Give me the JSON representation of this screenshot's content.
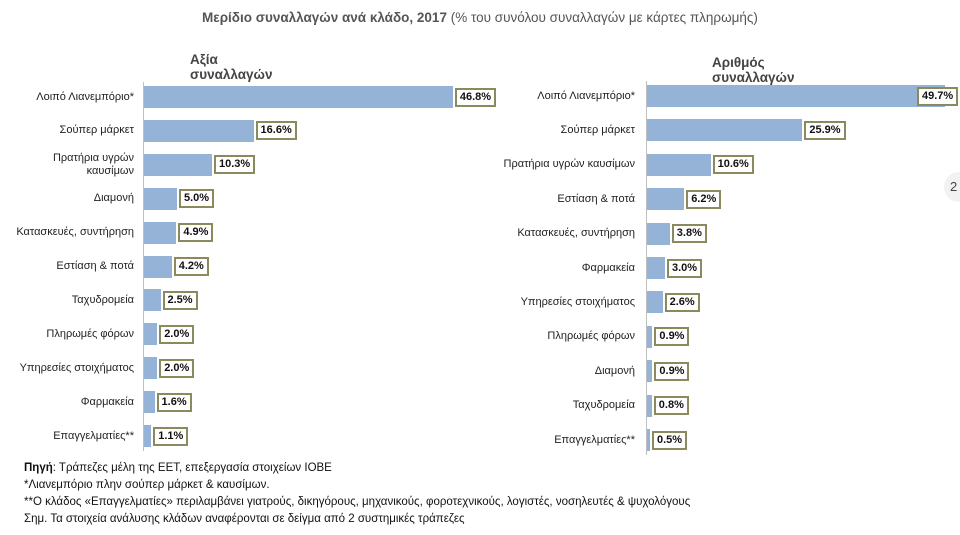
{
  "title": {
    "main": "Μερίδιο συναλλαγών ανά κλάδο, 2017",
    "sub": "(% του συνόλου συναλλαγών με κάρτες πληρωμής)"
  },
  "chart_data": [
    {
      "type": "bar",
      "orientation": "horizontal",
      "title": "Αξία συναλλαγών",
      "categories": [
        "Λοιπό Λιανεμπόριο*",
        "Σούπερ μάρκετ",
        "Πρατήρια υγρών καυσίμων",
        "Διαμονή",
        "Κατασκευές, συντήρηση",
        "Εστίαση & ποτά",
        "Ταχυδρομεία",
        "Πληρωμές φόρων",
        "Υπηρεσίες στοιχήματος",
        "Φαρμακεία",
        "Επαγγελματίες**"
      ],
      "values": [
        46.8,
        16.6,
        10.3,
        5.0,
        4.9,
        4.2,
        2.5,
        2.0,
        2.0,
        1.6,
        1.1
      ],
      "labels": [
        "46.8%",
        "16.6%",
        "10.3%",
        "5.0%",
        "4.9%",
        "4.2%",
        "2.5%",
        "2.0%",
        "2.0%",
        "1.6%",
        "1.1%"
      ],
      "color": "#95b3d7"
    },
    {
      "type": "bar",
      "orientation": "horizontal",
      "title": "Αριθμός συναλλαγών",
      "categories": [
        "Λοιπό Λιανεμπόριο*",
        "Σούπερ μάρκετ",
        "Πρατήρια υγρών καυσίμων",
        "Εστίαση & ποτά",
        "Κατασκευές, συντήρηση",
        "Φαρμακεία",
        "Υπηρεσίες στοιχήματος",
        "Πληρωμές φόρων",
        "Διαμονή",
        "Ταχυδρομεία",
        "Επαγγελματίες**"
      ],
      "values": [
        49.7,
        25.9,
        10.6,
        6.2,
        3.8,
        3.0,
        2.6,
        0.9,
        0.9,
        0.8,
        0.5
      ],
      "labels": [
        "49.7%",
        "25.9%",
        "10.6%",
        "6.2%",
        "3.8%",
        "3.0%",
        "2.6%",
        "0.9%",
        "0.9%",
        "0.8%",
        "0.5%"
      ],
      "color": "#95b3d7"
    }
  ],
  "notes": {
    "source_label": "Πηγή",
    "source_text": ": Τράπεζες μέλη της ΕΕΤ, επεξεργασία στοιχείων ΙΟΒΕ",
    "note1": "*Λιανεμπόριο πλην σούπερ μάρκετ & καυσίμων.",
    "note2": "**Ο κλάδος «Επαγγελματίες» περιλαμβάνει γιατρούς, δικηγόρους, μηχανικούς, φοροτεχνικούς, λογιστές, νοσηλευτές & ψυχολόγους",
    "note3": "Σημ. Τα στοιχεία ανάλυσης κλάδων αναφέρονται σε δείγμα από 2 συστημικές τράπεζες"
  },
  "edge_tab": "2"
}
